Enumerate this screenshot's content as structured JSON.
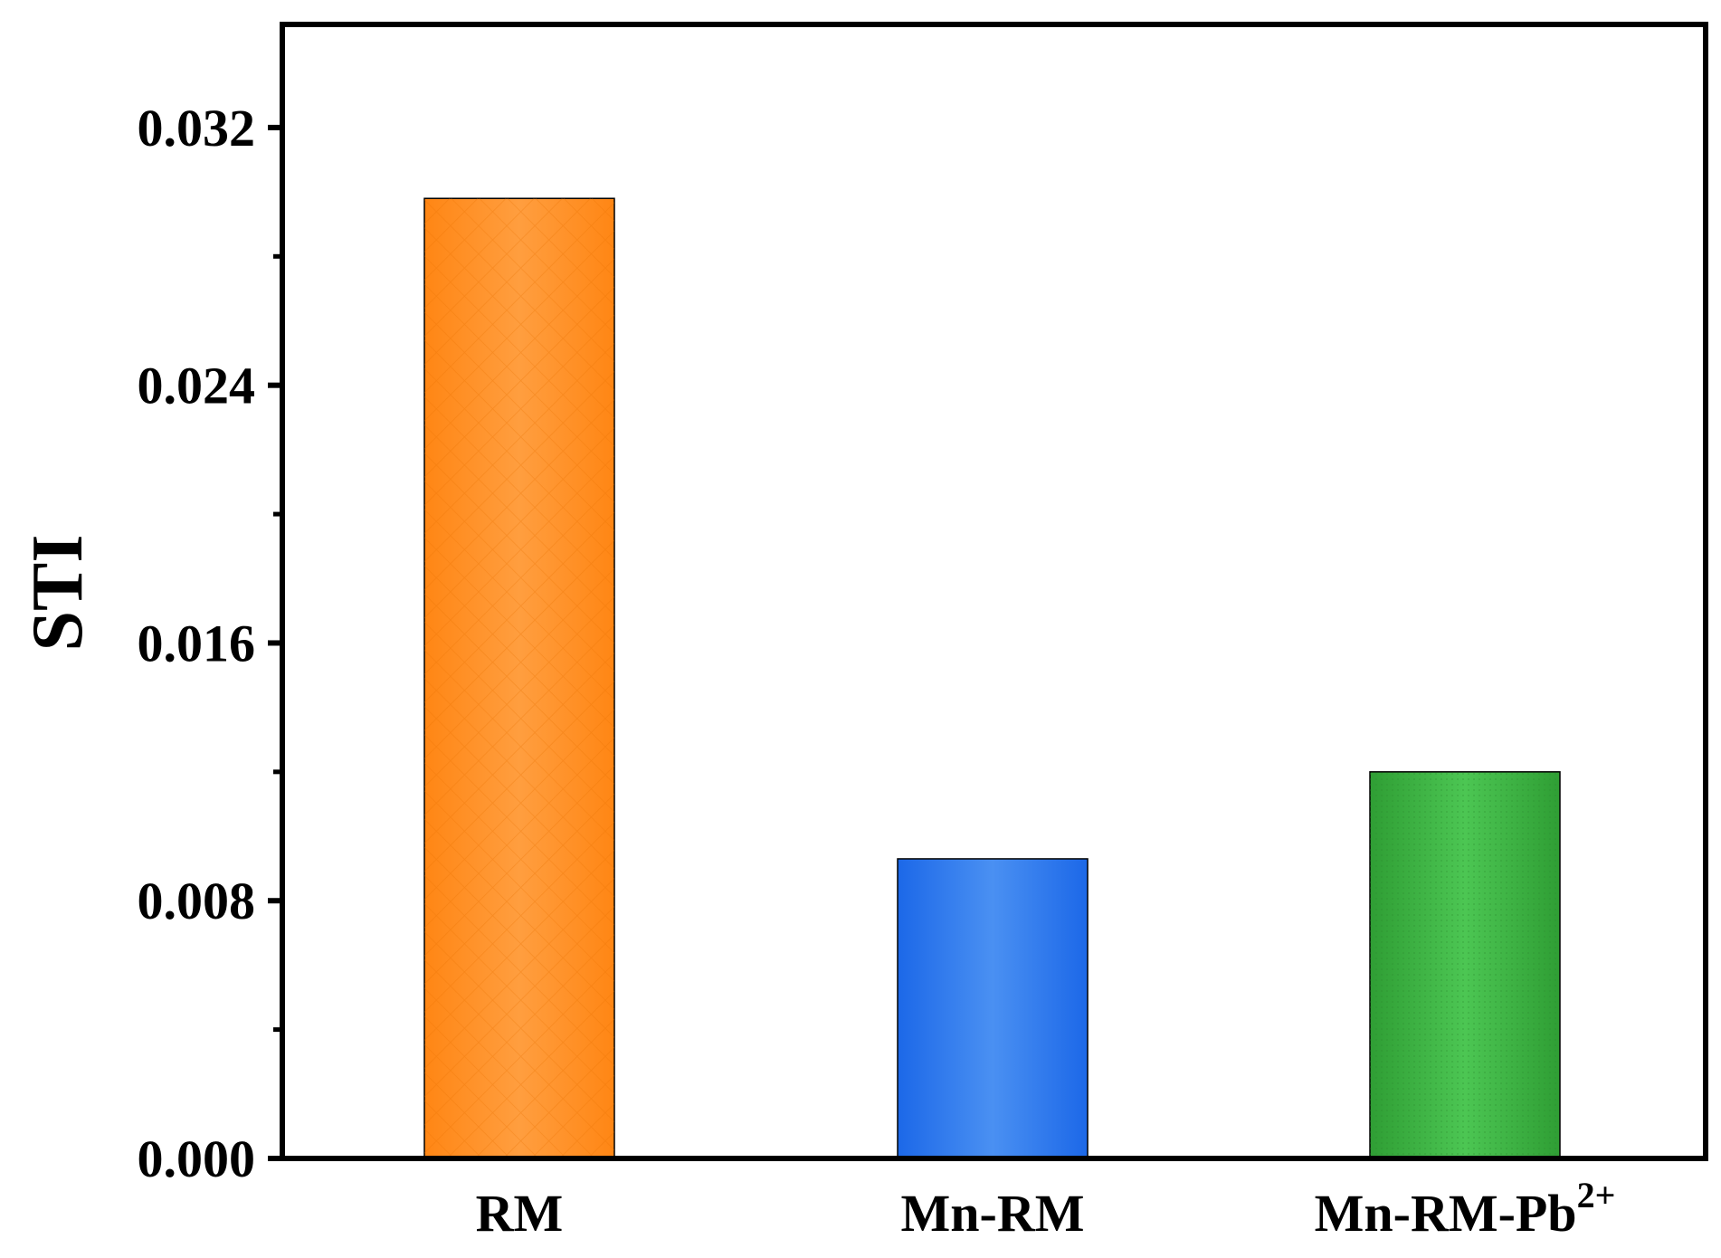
{
  "chart_data": {
    "type": "bar",
    "ylabel": "STI",
    "xlabel": "",
    "ylim": [
      0,
      0.0352
    ],
    "yticks": [
      0,
      0.008,
      0.016,
      0.024,
      0.032
    ],
    "yminor_ticks": [
      0.004,
      0.012,
      0.02,
      0.028
    ],
    "ytick_labels": [
      "0.000",
      "0.008",
      "0.016",
      "0.024",
      "0.032"
    ],
    "grid": false,
    "categories": [
      "RM",
      "Mn-RM",
      "Mn-RM-Pb²⁺"
    ],
    "category_labels": [
      {
        "main": "RM",
        "sup": ""
      },
      {
        "main": "Mn-RM",
        "sup": ""
      },
      {
        "main": "Mn-RM-Pb",
        "sup": "2+"
      }
    ],
    "values": [
      0.0298,
      0.0093,
      0.012
    ],
    "colors": [
      "#ff8a1c",
      "#2f7ff0",
      "#3fbb44"
    ],
    "patterns": [
      "crosshatch",
      "none",
      "dots"
    ]
  }
}
